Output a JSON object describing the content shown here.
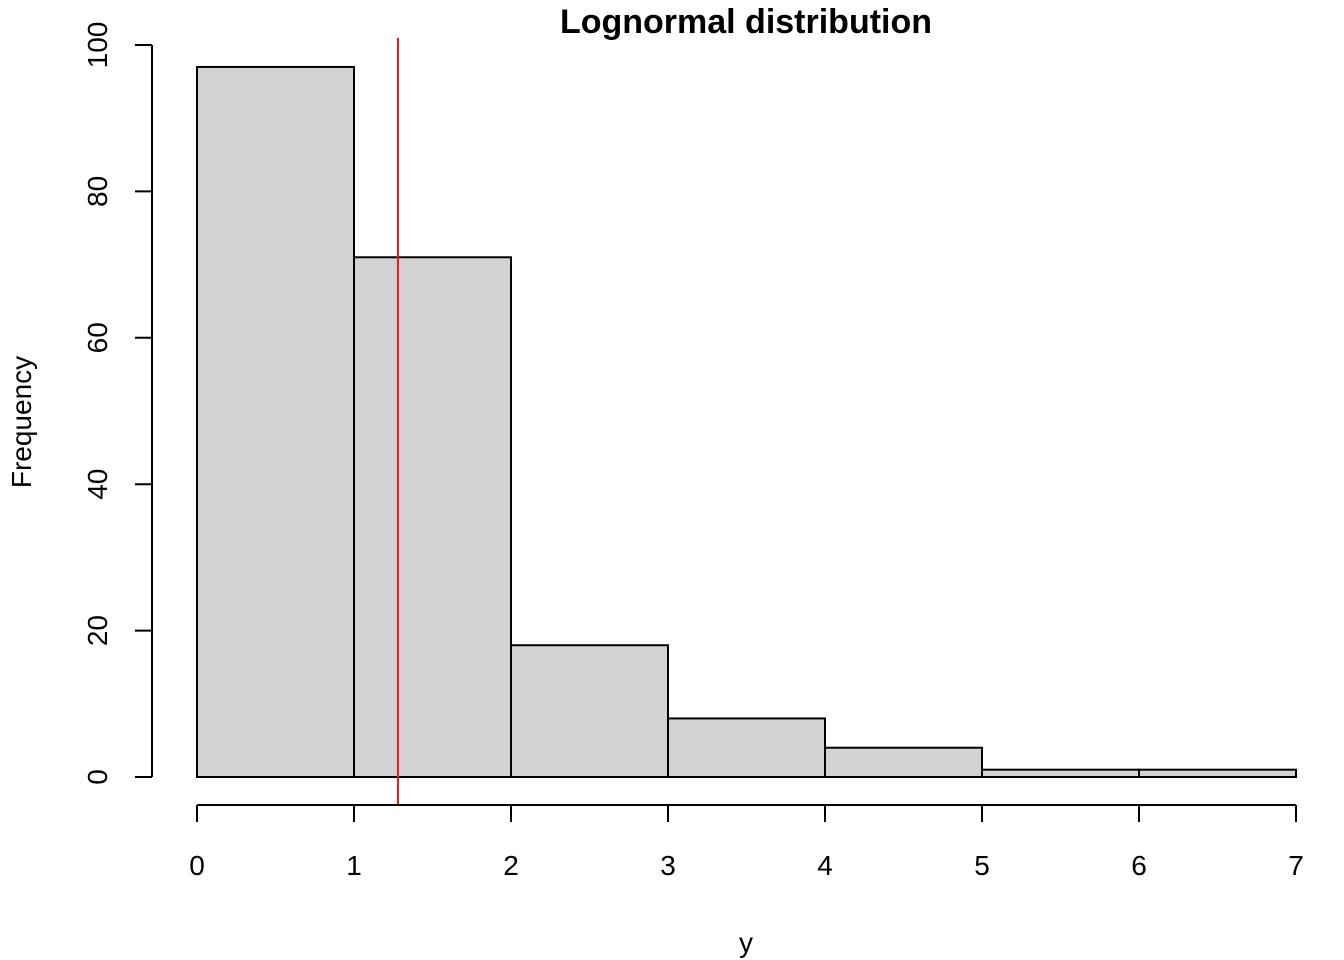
{
  "chart_data": {
    "type": "bar",
    "title": "Lognormal distribution",
    "xlabel": "y",
    "ylabel": "Frequency",
    "bins": [
      {
        "from": 0,
        "to": 1,
        "count": 97
      },
      {
        "from": 1,
        "to": 2,
        "count": 71
      },
      {
        "from": 2,
        "to": 3,
        "count": 18
      },
      {
        "from": 3,
        "to": 4,
        "count": 8
      },
      {
        "from": 4,
        "to": 5,
        "count": 4
      },
      {
        "from": 5,
        "to": 6,
        "count": 1
      },
      {
        "from": 6,
        "to": 7,
        "count": 1
      }
    ],
    "xlim": [
      0,
      7
    ],
    "ylim": [
      0,
      100
    ],
    "x_ticks": [
      "0",
      "1",
      "2",
      "3",
      "4",
      "5",
      "6",
      "7"
    ],
    "y_ticks": [
      "0",
      "20",
      "40",
      "60",
      "80",
      "100"
    ],
    "reference_line": {
      "axis": "x",
      "value": 1.28,
      "color": "#e31a1c"
    },
    "bar_fill": "#d3d3d3",
    "grid": false
  }
}
